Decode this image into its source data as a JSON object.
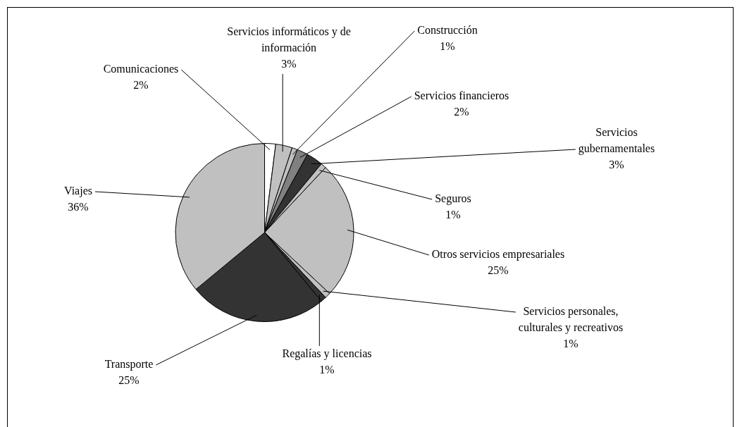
{
  "chart_data": {
    "type": "pie",
    "categories": [
      "Comunicaciones",
      "Servicios informáticos y de información",
      "Construcción",
      "Servicios financieros",
      "Servicios gubernamentales",
      "Seguros",
      "Otros servicios empresariales",
      "Servicios personales, culturales y recreativos",
      "Regalías y licencias",
      "Transporte",
      "Viajes"
    ],
    "values": [
      2,
      3,
      1,
      2,
      3,
      1,
      25,
      1,
      1,
      25,
      36
    ],
    "value_labels": [
      "2%",
      "3%",
      "1%",
      "2%",
      "3%",
      "1%",
      "25%",
      "1%",
      "1%",
      "25%",
      "36%"
    ],
    "colors": [
      "#ffffff",
      "#c0c0c0",
      "#c0c0c0",
      "#808080",
      "#333333",
      "#c0c0c0",
      "#c0c0c0",
      "#c0c0c0",
      "#333333",
      "#333333",
      "#c0c0c0"
    ],
    "legend": false
  }
}
